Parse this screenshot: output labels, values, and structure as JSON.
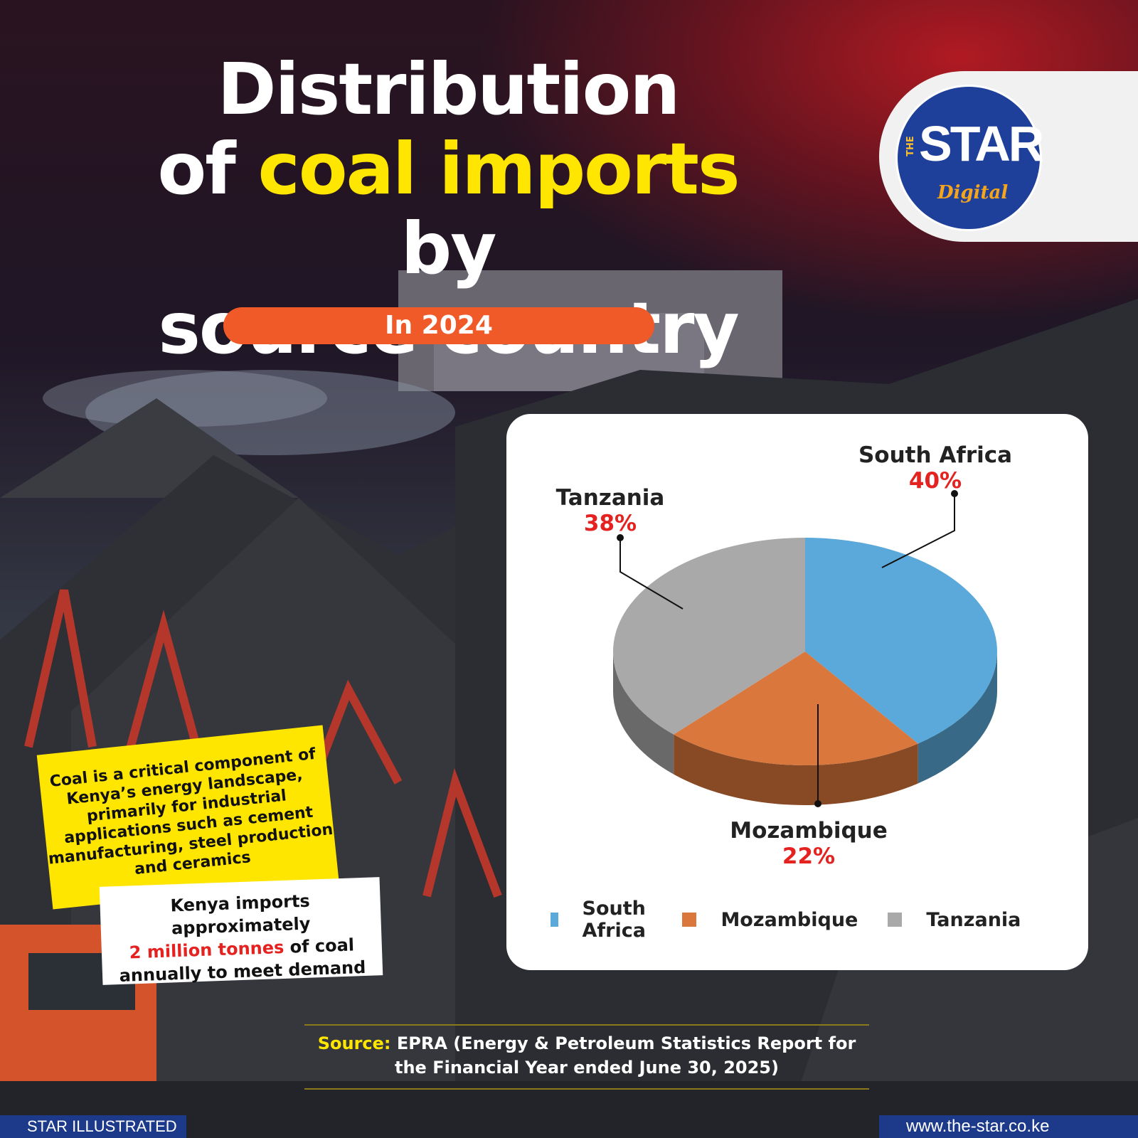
{
  "title": {
    "line1": "Distribution",
    "line2_pre": "of",
    "line2_highlight": "coal imports",
    "line2_post": "by",
    "line3": "source country"
  },
  "subtitle_pill": "In 2024",
  "logo": {
    "the": "THE",
    "star": "STAR",
    "digital": "Digital"
  },
  "chart_data": {
    "type": "pie",
    "categories": [
      "South Africa",
      "Mozambique",
      "Tanzania"
    ],
    "values": [
      40,
      22,
      38
    ],
    "value_labels": [
      "40%",
      "22%",
      "38%"
    ],
    "colors": [
      "#5aa9da",
      "#d9773c",
      "#a9a9a9"
    ],
    "legend_position": "bottom"
  },
  "note_yellow": "Coal is a critical component of Kenya’s energy landscape, primarily for industrial applications such as cement manufacturing, steel production and ceramics",
  "note_white": {
    "pre": "Kenya imports approximately",
    "highlight": "2 million tonnes",
    "post": "of coal annually to meet demand"
  },
  "source": {
    "label": "Source:",
    "text": "EPRA (Energy & Petroleum Statistics Report for the Financial Year ended June 30, 2025)"
  },
  "footer": {
    "left": "STAR ILLUSTRATED",
    "right": "www.the-star.co.ke"
  },
  "colors": {
    "accent_yellow": "#ffe600",
    "pill_orange": "#f05a28",
    "brand_blue": "#1d3a8a",
    "pct_red": "#e42320"
  }
}
